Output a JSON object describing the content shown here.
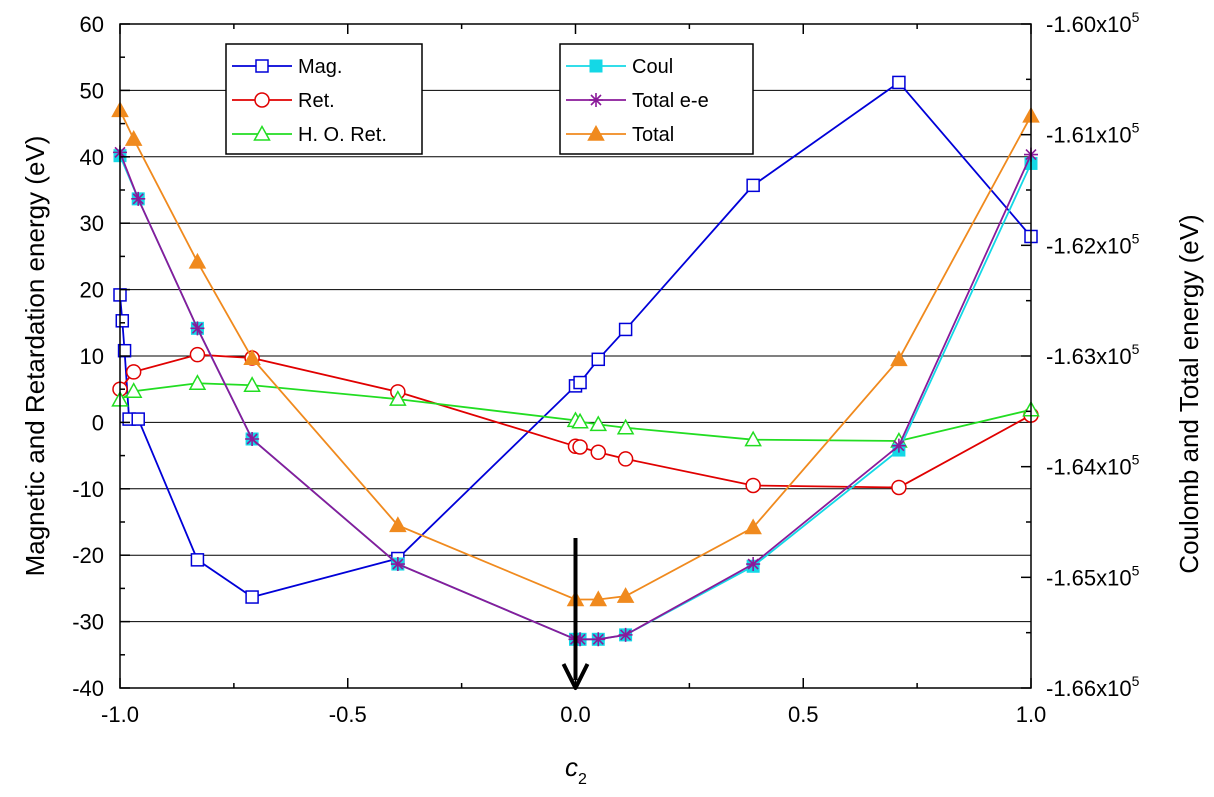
{
  "chart_data": {
    "type": "line",
    "xlabel": "c",
    "xlabel_subscript": "2",
    "ylabel_left": "Magnetic and Retardation energy (eV)",
    "ylabel_right": "Coulomb and Total energy (eV)",
    "xlim": [
      -1.0,
      1.0
    ],
    "ylim_left": [
      -40,
      60
    ],
    "ylim_right": [
      -166000,
      -160000
    ],
    "x_ticks": [
      "-1.0",
      "-0.5",
      "0.0",
      "0.5",
      "1.0"
    ],
    "y_ticks_left": [
      "-40",
      "-30",
      "-20",
      "-10",
      "0",
      "10",
      "20",
      "30",
      "40",
      "50",
      "60"
    ],
    "y_ticks_right": [
      {
        "base": "-1.66x10",
        "exp": "5",
        "value": -166000
      },
      {
        "base": "-1.65x10",
        "exp": "5",
        "value": -165000
      },
      {
        "base": "-1.64x10",
        "exp": "5",
        "value": -164000
      },
      {
        "base": "-1.63x10",
        "exp": "5",
        "value": -163000
      },
      {
        "base": "-1.62x10",
        "exp": "5",
        "value": -162000
      },
      {
        "base": "-1.61x10",
        "exp": "5",
        "value": -161000
      },
      {
        "base": "-1.60x10",
        "exp": "5",
        "value": -160000
      }
    ],
    "grid": "horizontal",
    "annotation": "downward arrow pointing at the minimum near c2 = 0",
    "series": [
      {
        "name": "Mag.",
        "axis": "left",
        "color": "#0000d8",
        "marker": "open-square",
        "x": [
          -1.0,
          -0.995,
          -0.99,
          -0.98,
          -0.96,
          -0.83,
          -0.71,
          -0.39,
          0.0,
          0.01,
          0.05,
          0.11,
          0.39,
          0.71,
          1.0
        ],
        "y": [
          19.2,
          15.3,
          10.8,
          0.5,
          0.5,
          -20.7,
          -26.3,
          -20.5,
          5.5,
          6.0,
          9.5,
          14.0,
          35.7,
          51.2,
          28.0
        ]
      },
      {
        "name": "Ret.",
        "axis": "left",
        "color": "#e00000",
        "marker": "open-circle",
        "x": [
          -1.0,
          -0.97,
          -0.83,
          -0.71,
          -0.39,
          0.0,
          0.01,
          0.05,
          0.11,
          0.39,
          0.71,
          1.0
        ],
        "y": [
          5.0,
          7.6,
          10.2,
          9.7,
          4.6,
          -3.6,
          -3.7,
          -4.5,
          -5.5,
          -9.5,
          -9.8,
          1.1
        ]
      },
      {
        "name": "H. O. Ret.",
        "axis": "left",
        "color": "#22dd22",
        "marker": "open-triangle",
        "x": [
          -1.0,
          -0.97,
          -0.83,
          -0.71,
          -0.39,
          0.0,
          0.01,
          0.05,
          0.11,
          0.39,
          0.71,
          1.0
        ],
        "y": [
          3.4,
          4.7,
          5.9,
          5.6,
          3.5,
          0.3,
          0.1,
          -0.3,
          -0.8,
          -2.6,
          -2.8,
          1.9
        ]
      },
      {
        "name": "Coul",
        "axis": "right",
        "color": "#14d8e6",
        "marker": "filled-square",
        "x": [
          -1.0,
          -0.96,
          -0.83,
          -0.71,
          -0.39,
          0.0,
          0.01,
          0.05,
          0.11,
          0.39,
          0.71,
          1.0
        ],
        "y": [
          -161190,
          -161580,
          -162750,
          -163750,
          -164880,
          -165560,
          -165560,
          -165560,
          -165520,
          -164900,
          -163850,
          -161260
        ]
      },
      {
        "name": "Total e-e",
        "axis": "right",
        "color": "#8a1a9a",
        "marker": "asterisk",
        "x": [
          -1.0,
          -0.96,
          -0.83,
          -0.71,
          -0.39,
          0.0,
          0.01,
          0.05,
          0.11,
          0.39,
          0.71,
          1.0
        ],
        "y": [
          -161160,
          -161580,
          -162750,
          -163750,
          -164880,
          -165560,
          -165560,
          -165560,
          -165520,
          -164880,
          -163810,
          -161180
        ]
      },
      {
        "name": "Total",
        "axis": "right",
        "color": "#f08a1e",
        "marker": "filled-triangle",
        "x": [
          -1.0,
          -0.97,
          -0.83,
          -0.71,
          -0.39,
          0.0,
          0.05,
          0.11,
          0.39,
          0.71,
          1.0
        ],
        "y": [
          -160780,
          -161040,
          -162150,
          -163020,
          -164530,
          -165200,
          -165200,
          -165170,
          -164550,
          -163030,
          -160830
        ]
      }
    ]
  }
}
